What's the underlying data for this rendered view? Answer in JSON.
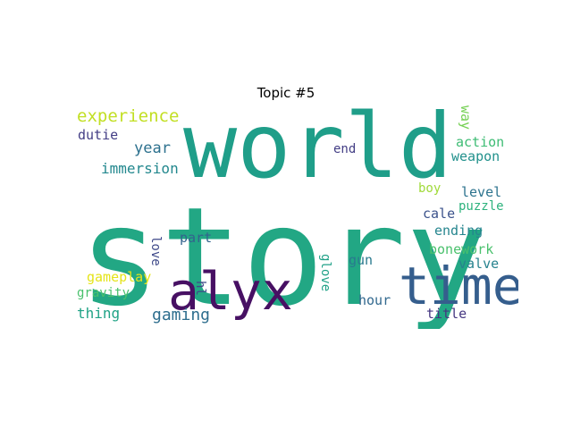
{
  "chart_data": {
    "type": "wordcloud",
    "title": "Topic #5",
    "background": "#ffffff",
    "words": [
      {
        "text": "story",
        "weight": 1.0,
        "color": "#22a784",
        "orientation": "horizontal"
      },
      {
        "text": "world",
        "weight": 0.72,
        "color": "#1f9e89",
        "orientation": "horizontal"
      },
      {
        "text": "alyx",
        "weight": 0.42,
        "color": "#471063",
        "orientation": "horizontal"
      },
      {
        "text": "time",
        "weight": 0.42,
        "color": "#355e8d",
        "orientation": "horizontal"
      },
      {
        "text": "experience",
        "weight": 0.16,
        "color": "#c2df23",
        "orientation": "horizontal"
      },
      {
        "text": "gaming",
        "weight": 0.13,
        "color": "#2e6e8e",
        "orientation": "horizontal"
      },
      {
        "text": "year",
        "weight": 0.12,
        "color": "#2d718e",
        "orientation": "horizontal"
      },
      {
        "text": "immersion",
        "weight": 0.12,
        "color": "#23888e",
        "orientation": "horizontal"
      },
      {
        "text": "thing",
        "weight": 0.11,
        "color": "#20a386",
        "orientation": "horizontal"
      },
      {
        "text": "gameplay",
        "weight": 0.11,
        "color": "#e5e419",
        "orientation": "horizontal"
      },
      {
        "text": "part",
        "weight": 0.11,
        "color": "#33638d",
        "orientation": "horizontal"
      },
      {
        "text": "gun",
        "weight": 0.11,
        "color": "#297a8e",
        "orientation": "horizontal"
      },
      {
        "text": "ending",
        "weight": 0.11,
        "color": "#25858e",
        "orientation": "horizontal"
      },
      {
        "text": "level",
        "weight": 0.11,
        "color": "#2c738e",
        "orientation": "horizontal"
      },
      {
        "text": "cale",
        "weight": 0.11,
        "color": "#3b528b",
        "orientation": "horizontal"
      },
      {
        "text": "bonework",
        "weight": 0.11,
        "color": "#4ac16d",
        "orientation": "horizontal"
      },
      {
        "text": "valve",
        "weight": 0.11,
        "color": "#26828e",
        "orientation": "horizontal"
      },
      {
        "text": "hour",
        "weight": 0.11,
        "color": "#31688e",
        "orientation": "horizontal"
      },
      {
        "text": "title",
        "weight": 0.11,
        "color": "#453781",
        "orientation": "horizontal"
      },
      {
        "text": "action",
        "weight": 0.1,
        "color": "#3dbc74",
        "orientation": "horizontal"
      },
      {
        "text": "weapon",
        "weight": 0.1,
        "color": "#21918c",
        "orientation": "horizontal"
      },
      {
        "text": "dutie",
        "weight": 0.1,
        "color": "#433e85",
        "orientation": "horizontal"
      },
      {
        "text": "end",
        "weight": 0.1,
        "color": "#433e85",
        "orientation": "horizontal"
      },
      {
        "text": "gravity",
        "weight": 0.1,
        "color": "#4ac16d",
        "orientation": "horizontal"
      },
      {
        "text": "puzzle",
        "weight": 0.1,
        "color": "#2db27d",
        "orientation": "horizontal"
      },
      {
        "text": "boy",
        "weight": 0.1,
        "color": "#a0da39",
        "orientation": "horizontal"
      },
      {
        "text": "way",
        "weight": 0.1,
        "color": "#75d054",
        "orientation": "vertical"
      },
      {
        "text": "love",
        "weight": 0.1,
        "color": "#3e4989",
        "orientation": "vertical"
      },
      {
        "text": "glove",
        "weight": 0.1,
        "color": "#1fa187",
        "orientation": "vertical"
      },
      {
        "text": "hl",
        "weight": 0.1,
        "color": "#3e4989",
        "orientation": "vertical"
      }
    ]
  }
}
